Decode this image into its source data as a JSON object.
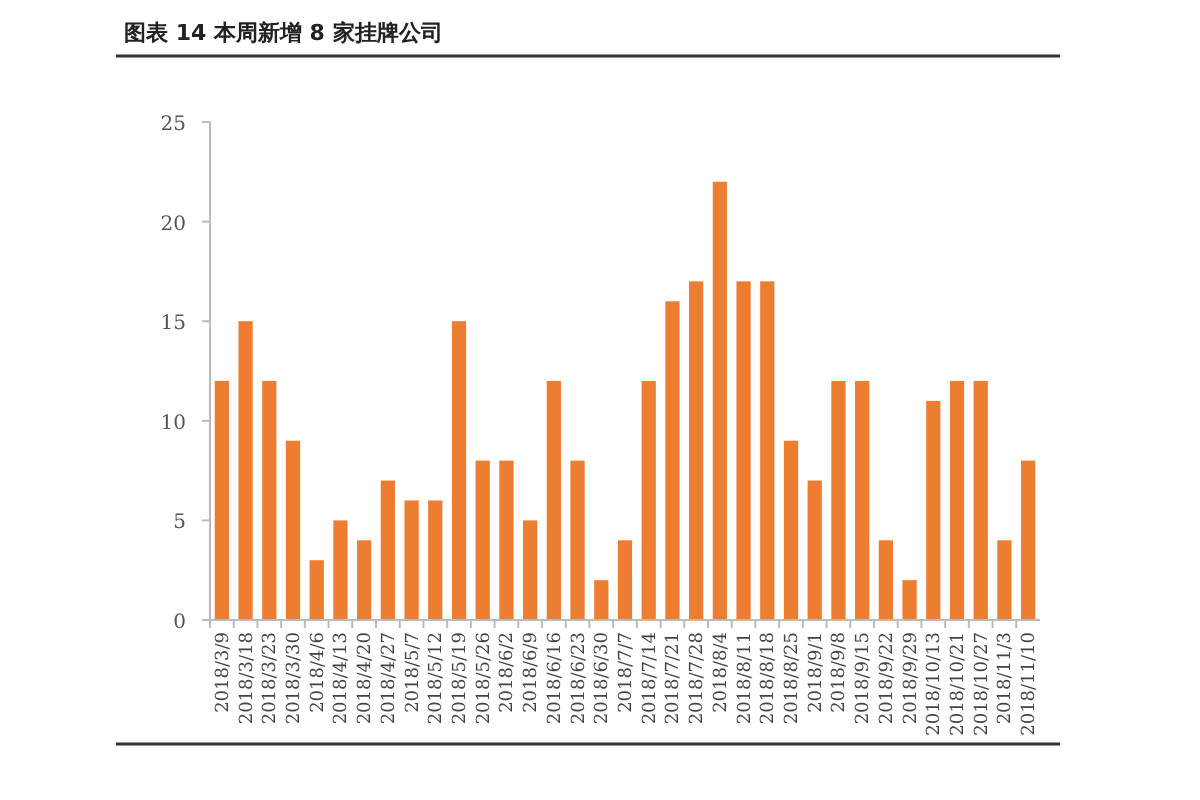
{
  "chart_data": {
    "type": "bar",
    "title": "图表 14 本周新增 8 家挂牌公司",
    "categories": [
      "2018/3/9",
      "2018/3/18",
      "2018/3/23",
      "2018/3/30",
      "2018/4/6",
      "2018/4/13",
      "2018/4/20",
      "2018/4/27",
      "2018/5/7",
      "2018/5/12",
      "2018/5/19",
      "2018/5/26",
      "2018/6/2",
      "2018/6/9",
      "2018/6/16",
      "2018/6/23",
      "2018/6/30",
      "2018/7/7",
      "2018/7/14",
      "2018/7/21",
      "2018/7/28",
      "2018/8/4",
      "2018/8/11",
      "2018/8/18",
      "2018/8/25",
      "2018/9/1",
      "2018/9/8",
      "2018/9/15",
      "2018/9/22",
      "2018/9/29",
      "2018/10/13",
      "2018/10/21",
      "2018/10/27",
      "2018/11/3",
      "2018/11/10"
    ],
    "values": [
      12,
      15,
      12,
      9,
      3,
      5,
      4,
      7,
      6,
      6,
      15,
      8,
      8,
      5,
      12,
      8,
      2,
      4,
      12,
      16,
      17,
      22,
      17,
      17,
      9,
      7,
      12,
      12,
      4,
      2,
      11,
      12,
      12,
      4,
      8
    ],
    "color": "#ed7d31",
    "ylim": [
      0,
      25
    ],
    "yticks": [
      0,
      5,
      10,
      15,
      20,
      25
    ]
  }
}
